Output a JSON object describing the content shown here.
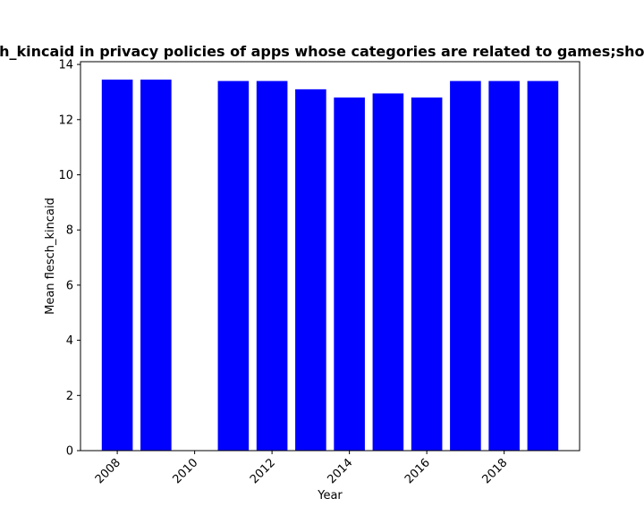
{
  "chart_data": {
    "type": "bar",
    "title": "Mean flesch_kincaid in privacy policies of apps whose categories are related to games;shopping;sports",
    "xlabel": "Year",
    "ylabel": "Mean flesch_kincaid",
    "x": [
      2008,
      2009,
      2010,
      2011,
      2012,
      2013,
      2014,
      2015,
      2016,
      2017,
      2018,
      2019
    ],
    "values": [
      13.45,
      13.45,
      0,
      13.4,
      13.4,
      13.1,
      12.8,
      12.95,
      12.8,
      13.4,
      13.4,
      13.4
    ],
    "xlim": [
      2007.05,
      2019.95
    ],
    "ylim": [
      0,
      14.1
    ],
    "xticks": [
      2008,
      2010,
      2012,
      2014,
      2016,
      2018
    ],
    "yticks": [
      0,
      2,
      4,
      6,
      8,
      10,
      12,
      14
    ],
    "bar_color": "#0000ff",
    "grid": false,
    "legend": "none"
  }
}
